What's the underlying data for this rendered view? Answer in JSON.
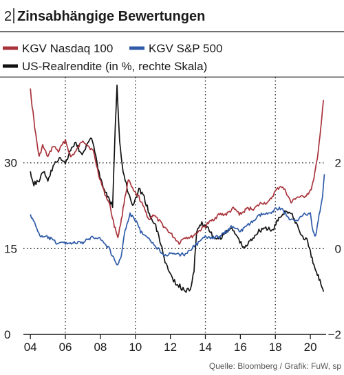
{
  "chart_data": {
    "type": "line",
    "number": "2",
    "title": "Zinsabhängige Bewertungen",
    "source": "Quelle: Bloomberg / Grafik: FuW, sp",
    "x_tick_labels": [
      "04",
      "06",
      "08",
      "10",
      "12",
      "14",
      "16",
      "18",
      "20"
    ],
    "x_ticks": [
      2004,
      2006,
      2008,
      2010,
      2012,
      2014,
      2016,
      2018,
      2020
    ],
    "xlim": [
      2003.6,
      2020.9
    ],
    "y_left": {
      "ticks": [
        0,
        15,
        30
      ],
      "tick_labels": [
        "0",
        "15",
        "30"
      ],
      "ylim": [
        0,
        45
      ]
    },
    "y_right": {
      "ticks": [
        -2,
        0,
        2
      ],
      "tick_labels": [
        "−2",
        "0",
        "2"
      ],
      "ylim": [
        -2,
        4
      ]
    },
    "grid": "dotted",
    "legend": "top",
    "series": [
      {
        "name": "KGV Nasdaq 100",
        "axis": "left",
        "color": "#a8323a",
        "x": [
          2004.0,
          2004.1,
          2004.3,
          2004.5,
          2004.7,
          2005.0,
          2005.3,
          2005.6,
          2006.0,
          2006.3,
          2006.6,
          2007.0,
          2007.3,
          2007.6,
          2007.9,
          2008.2,
          2008.5,
          2008.8,
          2009.0,
          2009.2,
          2009.4,
          2009.6,
          2009.9,
          2010.2,
          2010.5,
          2010.8,
          2011.0,
          2011.3,
          2011.6,
          2011.9,
          2012.2,
          2012.5,
          2012.8,
          2013.2,
          2013.6,
          2014.0,
          2014.4,
          2014.8,
          2015.2,
          2015.6,
          2016.0,
          2016.4,
          2016.8,
          2017.2,
          2017.6,
          2018.0,
          2018.3,
          2018.6,
          2018.9,
          2019.2,
          2019.6,
          2020.0,
          2020.2,
          2020.4,
          2020.6,
          2020.75
        ],
        "values": [
          43,
          40,
          35,
          31,
          33,
          31,
          33,
          32,
          34,
          31,
          32,
          34,
          33,
          32,
          28,
          25,
          23,
          19,
          17,
          20,
          24,
          27,
          25,
          24,
          22,
          20,
          21,
          20,
          19,
          18,
          17,
          16,
          17,
          17,
          18,
          19,
          20,
          21,
          21,
          22,
          21,
          22,
          22,
          23,
          23,
          25,
          26,
          25,
          23,
          24,
          24,
          25,
          27,
          31,
          36,
          41
        ]
      },
      {
        "name": "KGV S&P 500",
        "axis": "left",
        "color": "#2e5aa8",
        "x": [
          2004.0,
          2004.3,
          2004.6,
          2005.0,
          2005.5,
          2006.0,
          2006.5,
          2007.0,
          2007.5,
          2007.9,
          2008.2,
          2008.5,
          2008.8,
          2009.0,
          2009.2,
          2009.4,
          2009.7,
          2010.0,
          2010.3,
          2010.6,
          2011.0,
          2011.3,
          2011.6,
          2011.9,
          2012.2,
          2012.5,
          2012.8,
          2013.2,
          2013.6,
          2014.0,
          2014.4,
          2014.8,
          2015.2,
          2015.6,
          2016.0,
          2016.4,
          2016.8,
          2017.2,
          2017.6,
          2018.0,
          2018.4,
          2018.8,
          2019.2,
          2019.6,
          2020.0,
          2020.15,
          2020.3,
          2020.5,
          2020.7,
          2020.8
        ],
        "values": [
          21,
          19,
          17,
          17,
          16,
          16,
          16,
          16,
          17,
          17,
          16,
          15,
          13,
          12,
          14,
          18,
          21,
          20,
          18,
          17,
          16,
          15,
          14,
          14,
          14,
          14,
          14,
          15,
          16,
          17,
          17,
          17,
          18,
          19,
          18,
          19,
          20,
          21,
          21,
          22,
          22,
          20,
          20,
          21,
          21,
          18,
          17,
          21,
          24,
          28
        ]
      },
      {
        "name": "US-Realrendite (in %, rechte Skala)",
        "axis": "right",
        "color": "#111111",
        "x": [
          2004.0,
          2004.2,
          2004.5,
          2004.8,
          2005.0,
          2005.3,
          2005.6,
          2006.0,
          2006.3,
          2006.6,
          2006.9,
          2007.2,
          2007.5,
          2007.8,
          2008.1,
          2008.4,
          2008.7,
          2008.85,
          2008.95,
          2009.1,
          2009.3,
          2009.6,
          2009.9,
          2010.2,
          2010.5,
          2010.8,
          2011.1,
          2011.4,
          2011.7,
          2012.0,
          2012.3,
          2012.6,
          2012.9,
          2013.2,
          2013.35,
          2013.5,
          2013.8,
          2014.1,
          2014.4,
          2014.7,
          2015.0,
          2015.4,
          2015.8,
          2016.2,
          2016.6,
          2017.0,
          2017.4,
          2017.8,
          2018.2,
          2018.6,
          2018.9,
          2019.2,
          2019.5,
          2019.8,
          2020.0,
          2020.2,
          2020.4,
          2020.6,
          2020.75
        ],
        "values": [
          1.8,
          1.5,
          1.6,
          1.8,
          1.6,
          1.9,
          2.1,
          2.0,
          2.3,
          2.5,
          2.2,
          2.4,
          2.6,
          2.0,
          1.5,
          1.2,
          1.0,
          2.8,
          3.8,
          2.5,
          1.8,
          1.3,
          1.0,
          1.4,
          1.2,
          0.8,
          0.6,
          0.2,
          -0.3,
          -0.6,
          -0.8,
          -0.9,
          -1.0,
          -0.9,
          -0.5,
          0.4,
          0.6,
          0.5,
          0.3,
          0.2,
          0.3,
          0.5,
          0.3,
          0.0,
          0.2,
          0.4,
          0.5,
          0.4,
          0.7,
          0.9,
          0.8,
          0.6,
          0.3,
          0.2,
          -0.1,
          -0.4,
          -0.6,
          -0.8,
          -1.0
        ]
      }
    ]
  }
}
